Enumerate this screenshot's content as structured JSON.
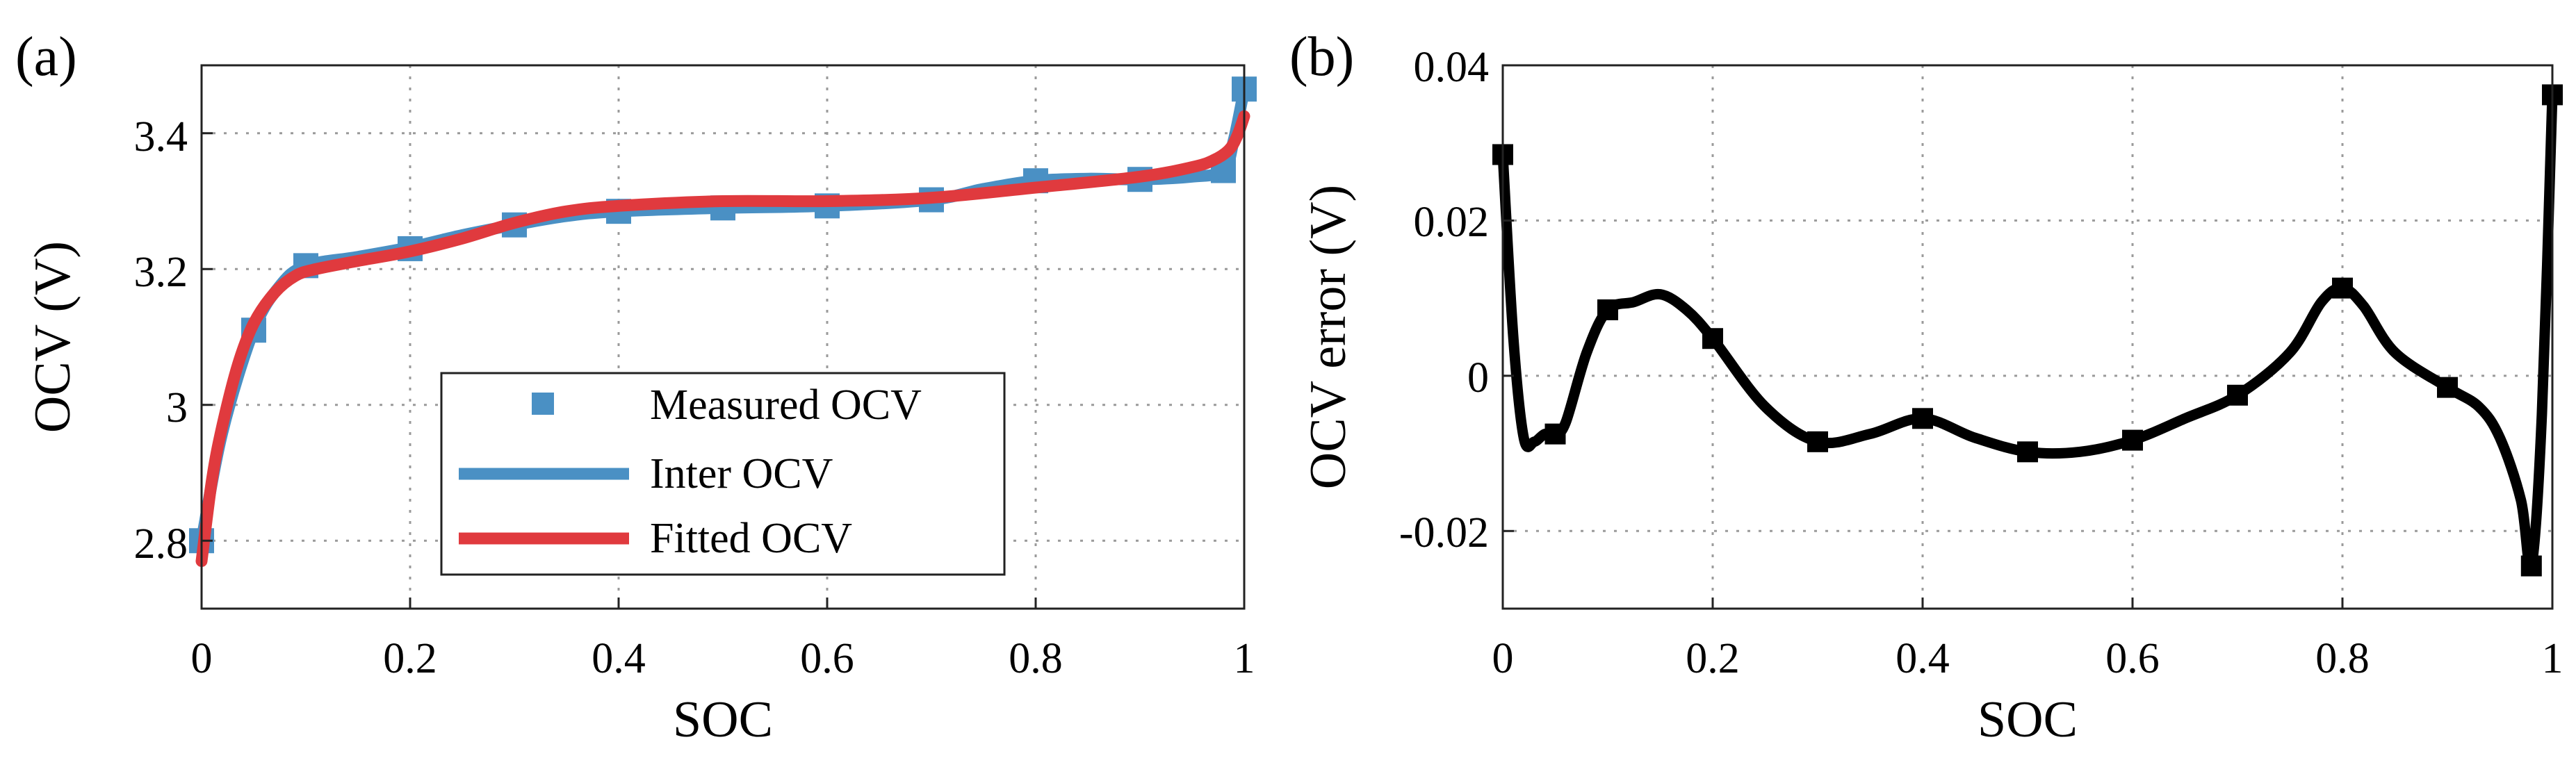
{
  "colors": {
    "measured": "#4a90c4",
    "inter": "#4a90c4",
    "fitted": "#e03a3e",
    "error": "#000000"
  },
  "chart_data": [
    {
      "panel_label": "(a)",
      "type": "line",
      "xlabel": "SOC",
      "ylabel": "OCV (V)",
      "xlim": [
        0,
        1
      ],
      "ylim": [
        2.7,
        3.5
      ],
      "xticks": [
        0,
        0.2,
        0.4,
        0.6,
        0.8,
        1
      ],
      "xtick_labels": [
        "0",
        "0.2",
        "0.4",
        "0.6",
        "0.8",
        "1"
      ],
      "yticks": [
        2.8,
        3.0,
        3.2,
        3.4
      ],
      "ytick_labels": [
        "2.8",
        "3",
        "3.2",
        "3.4"
      ],
      "grid": true,
      "legend_position": "bottom-right",
      "series": [
        {
          "name": "Measured OCV",
          "style": "markers",
          "marker": "square",
          "x": [
            0,
            0.05,
            0.1,
            0.2,
            0.3,
            0.4,
            0.5,
            0.6,
            0.7,
            0.8,
            0.9,
            0.98,
            1.0
          ],
          "y": [
            2.8,
            3.11,
            3.205,
            3.23,
            3.265,
            3.285,
            3.29,
            3.293,
            3.302,
            3.33,
            3.332,
            3.345,
            3.465
          ]
        },
        {
          "name": "Inter OCV",
          "style": "line",
          "x": [
            0,
            0.02,
            0.05,
            0.075,
            0.1,
            0.15,
            0.2,
            0.25,
            0.3,
            0.35,
            0.4,
            0.5,
            0.6,
            0.7,
            0.75,
            0.8,
            0.85,
            0.9,
            0.95,
            0.98,
            0.99,
            1.0
          ],
          "y": [
            2.8,
            2.96,
            3.11,
            3.175,
            3.205,
            3.218,
            3.232,
            3.25,
            3.265,
            3.278,
            3.285,
            3.29,
            3.293,
            3.302,
            3.318,
            3.33,
            3.333,
            3.332,
            3.336,
            3.345,
            3.39,
            3.465
          ]
        },
        {
          "name": "Fitted OCV",
          "style": "line",
          "x": [
            0,
            0.01,
            0.02,
            0.035,
            0.05,
            0.07,
            0.09,
            0.11,
            0.15,
            0.2,
            0.25,
            0.3,
            0.35,
            0.4,
            0.5,
            0.6,
            0.7,
            0.8,
            0.9,
            0.95,
            0.97,
            0.985,
            0.993,
            1.0
          ],
          "y": [
            2.77,
            2.89,
            2.97,
            3.06,
            3.12,
            3.165,
            3.19,
            3.2,
            3.212,
            3.226,
            3.245,
            3.268,
            3.285,
            3.293,
            3.3,
            3.3,
            3.305,
            3.32,
            3.336,
            3.35,
            3.36,
            3.375,
            3.395,
            3.425
          ]
        }
      ]
    },
    {
      "panel_label": "(b)",
      "type": "line",
      "xlabel": "SOC",
      "ylabel": "OCV error (V)",
      "xlim": [
        0,
        1
      ],
      "ylim": [
        -0.03,
        0.04
      ],
      "xticks": [
        0,
        0.2,
        0.4,
        0.6,
        0.8,
        1
      ],
      "xtick_labels": [
        "0",
        "0.2",
        "0.4",
        "0.6",
        "0.8",
        "1"
      ],
      "yticks": [
        -0.02,
        0,
        0.02,
        0.04
      ],
      "ytick_labels": [
        "-0.02",
        "0",
        "0.02",
        "0.04"
      ],
      "grid": true,
      "series": [
        {
          "style": "markers",
          "marker": "square",
          "x": [
            0,
            0.05,
            0.1,
            0.2,
            0.3,
            0.4,
            0.5,
            0.6,
            0.7,
            0.8,
            0.9,
            0.98,
            1.0
          ],
          "y": [
            0.0285,
            -0.0075,
            0.0085,
            0.0048,
            -0.0085,
            -0.0055,
            -0.0098,
            -0.0083,
            -0.0025,
            0.0113,
            -0.0015,
            -0.0245,
            0.0362
          ]
        },
        {
          "style": "line",
          "x": [
            0,
            0.01,
            0.02,
            0.03,
            0.04,
            0.05,
            0.06,
            0.08,
            0.1,
            0.125,
            0.15,
            0.175,
            0.2,
            0.25,
            0.3,
            0.35,
            0.4,
            0.45,
            0.5,
            0.55,
            0.6,
            0.65,
            0.7,
            0.75,
            0.78,
            0.8,
            0.82,
            0.85,
            0.9,
            0.93,
            0.95,
            0.97,
            0.98,
            0.99,
            1.0
          ],
          "y": [
            0.0285,
            0.005,
            -0.008,
            -0.0085,
            -0.0075,
            -0.0075,
            -0.006,
            0.003,
            0.0085,
            0.0095,
            0.0105,
            0.0085,
            0.0048,
            -0.004,
            -0.0085,
            -0.0075,
            -0.0055,
            -0.008,
            -0.0098,
            -0.0098,
            -0.0083,
            -0.0055,
            -0.0025,
            0.003,
            0.0095,
            0.0113,
            0.009,
            0.003,
            -0.0015,
            -0.004,
            -0.008,
            -0.016,
            -0.0245,
            -0.005,
            0.0362
          ]
        }
      ]
    }
  ]
}
